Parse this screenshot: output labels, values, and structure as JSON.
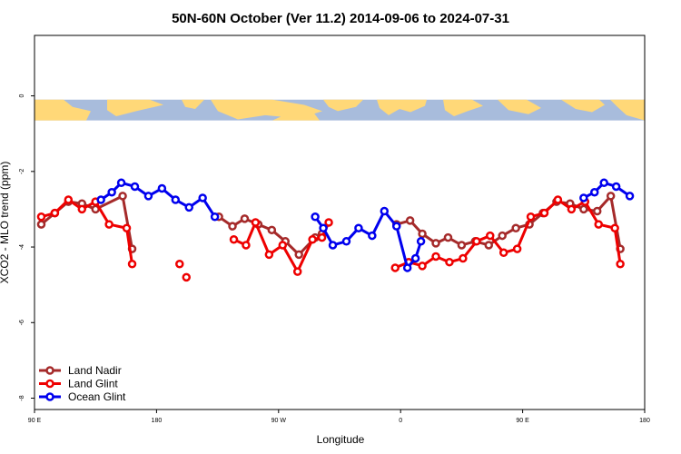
{
  "chart_data": {
    "type": "line",
    "title": "50N-60N October (Ver 11.2)   2014-09-06 to 2024-07-31",
    "xlabel": "Longitude",
    "ylabel": "XCO2 - MLO trend (ppm)",
    "xlim": [
      90,
      540
    ],
    "ylim": [
      -8.3,
      1.6
    ],
    "x_ticks": [
      {
        "value": 90,
        "label": "90 E"
      },
      {
        "value": 180,
        "label": "180"
      },
      {
        "value": 270,
        "label": "90 W"
      },
      {
        "value": 360,
        "label": "0"
      },
      {
        "value": 450,
        "label": "90 E"
      },
      {
        "value": 540,
        "label": "180"
      }
    ],
    "y_ticks": [
      {
        "value": 0,
        "label": "0"
      },
      {
        "value": -2,
        "label": "-2"
      },
      {
        "value": -4,
        "label": "-4"
      },
      {
        "value": -6,
        "label": "-6"
      },
      {
        "value": -8,
        "label": "-8"
      }
    ],
    "map_strip": {
      "y_top": -0.1,
      "y_bottom": -0.65,
      "ocean_color": "#a8bcdc",
      "land_color": "#ffd878"
    },
    "legend_position": "bottom-left",
    "series": [
      {
        "name": "Land Nadir",
        "color": "#a52a2a",
        "segments": [
          [
            [
              95,
              -3.4
            ],
            [
              105,
              -3.1
            ],
            [
              115,
              -2.8
            ],
            [
              125,
              -2.85
            ],
            [
              135,
              -3.0
            ],
            [
              155,
              -2.65
            ],
            [
              162,
              -4.05
            ]
          ],
          [
            [
              226,
              -3.2
            ],
            [
              236,
              -3.45
            ],
            [
              245,
              -3.25
            ],
            [
              255,
              -3.4
            ],
            [
              265,
              -3.55
            ],
            [
              275,
              -3.85
            ],
            [
              285,
              -4.2
            ],
            [
              297,
              -3.75
            ],
            [
              302,
              -3.65
            ]
          ],
          [
            [
              357,
              -3.4
            ],
            [
              367,
              -3.3
            ],
            [
              376,
              -3.65
            ],
            [
              386,
              -3.9
            ],
            [
              395,
              -3.75
            ],
            [
              405,
              -3.95
            ],
            [
              415,
              -3.85
            ],
            [
              425,
              -3.95
            ],
            [
              435,
              -3.7
            ],
            [
              445,
              -3.5
            ],
            [
              455,
              -3.4
            ],
            [
              465,
              -3.1
            ],
            [
              475,
              -2.8
            ],
            [
              485,
              -2.85
            ],
            [
              495,
              -3.0
            ],
            [
              505,
              -3.05
            ],
            [
              515,
              -2.65
            ],
            [
              522,
              -4.05
            ]
          ]
        ]
      },
      {
        "name": "Land Glint",
        "color": "#ee0000",
        "segments": [
          [
            [
              95,
              -3.2
            ],
            [
              105,
              -3.1
            ],
            [
              115,
              -2.75
            ],
            [
              125,
              -3.0
            ],
            [
              135,
              -2.8
            ],
            [
              145,
              -3.4
            ],
            [
              158,
              -3.5
            ],
            [
              162,
              -4.45
            ]
          ],
          [
            [
              197,
              -4.45
            ]
          ],
          [
            [
              202,
              -4.8
            ]
          ],
          [
            [
              237,
              -3.8
            ],
            [
              246,
              -3.95
            ],
            [
              253,
              -3.35
            ],
            [
              263,
              -4.2
            ],
            [
              273,
              -3.95
            ],
            [
              284,
              -4.65
            ],
            [
              295,
              -3.8
            ],
            [
              302,
              -3.75
            ],
            [
              307,
              -3.35
            ]
          ],
          [
            [
              356,
              -4.55
            ],
            [
              366,
              -4.4
            ],
            [
              376,
              -4.5
            ],
            [
              386,
              -4.25
            ],
            [
              396,
              -4.4
            ],
            [
              406,
              -4.3
            ],
            [
              416,
              -3.85
            ],
            [
              426,
              -3.7
            ],
            [
              436,
              -4.15
            ],
            [
              446,
              -4.05
            ],
            [
              456,
              -3.2
            ],
            [
              466,
              -3.1
            ],
            [
              476,
              -2.75
            ],
            [
              486,
              -3.0
            ],
            [
              496,
              -2.8
            ],
            [
              506,
              -3.4
            ],
            [
              518,
              -3.5
            ],
            [
              522,
              -4.45
            ]
          ]
        ]
      },
      {
        "name": "Ocean Glint",
        "color": "#0000ee",
        "segments": [
          [
            [
              139,
              -2.75
            ],
            [
              147,
              -2.55
            ],
            [
              154,
              -2.3
            ],
            [
              164,
              -2.4
            ],
            [
              174,
              -2.65
            ],
            [
              184,
              -2.45
            ],
            [
              194,
              -2.75
            ],
            [
              204,
              -2.95
            ],
            [
              214,
              -2.7
            ],
            [
              223,
              -3.2
            ]
          ],
          [
            [
              297,
              -3.2
            ],
            [
              303,
              -3.5
            ],
            [
              310,
              -3.95
            ],
            [
              320,
              -3.85
            ],
            [
              329,
              -3.5
            ],
            [
              339,
              -3.7
            ],
            [
              348,
              -3.05
            ],
            [
              357,
              -3.45
            ],
            [
              365,
              -4.55
            ],
            [
              371,
              -4.3
            ],
            [
              375,
              -3.85
            ]
          ],
          [
            [
              495,
              -2.7
            ],
            [
              503,
              -2.55
            ],
            [
              510,
              -2.3
            ],
            [
              519,
              -2.4
            ],
            [
              529,
              -2.65
            ]
          ]
        ]
      }
    ]
  }
}
